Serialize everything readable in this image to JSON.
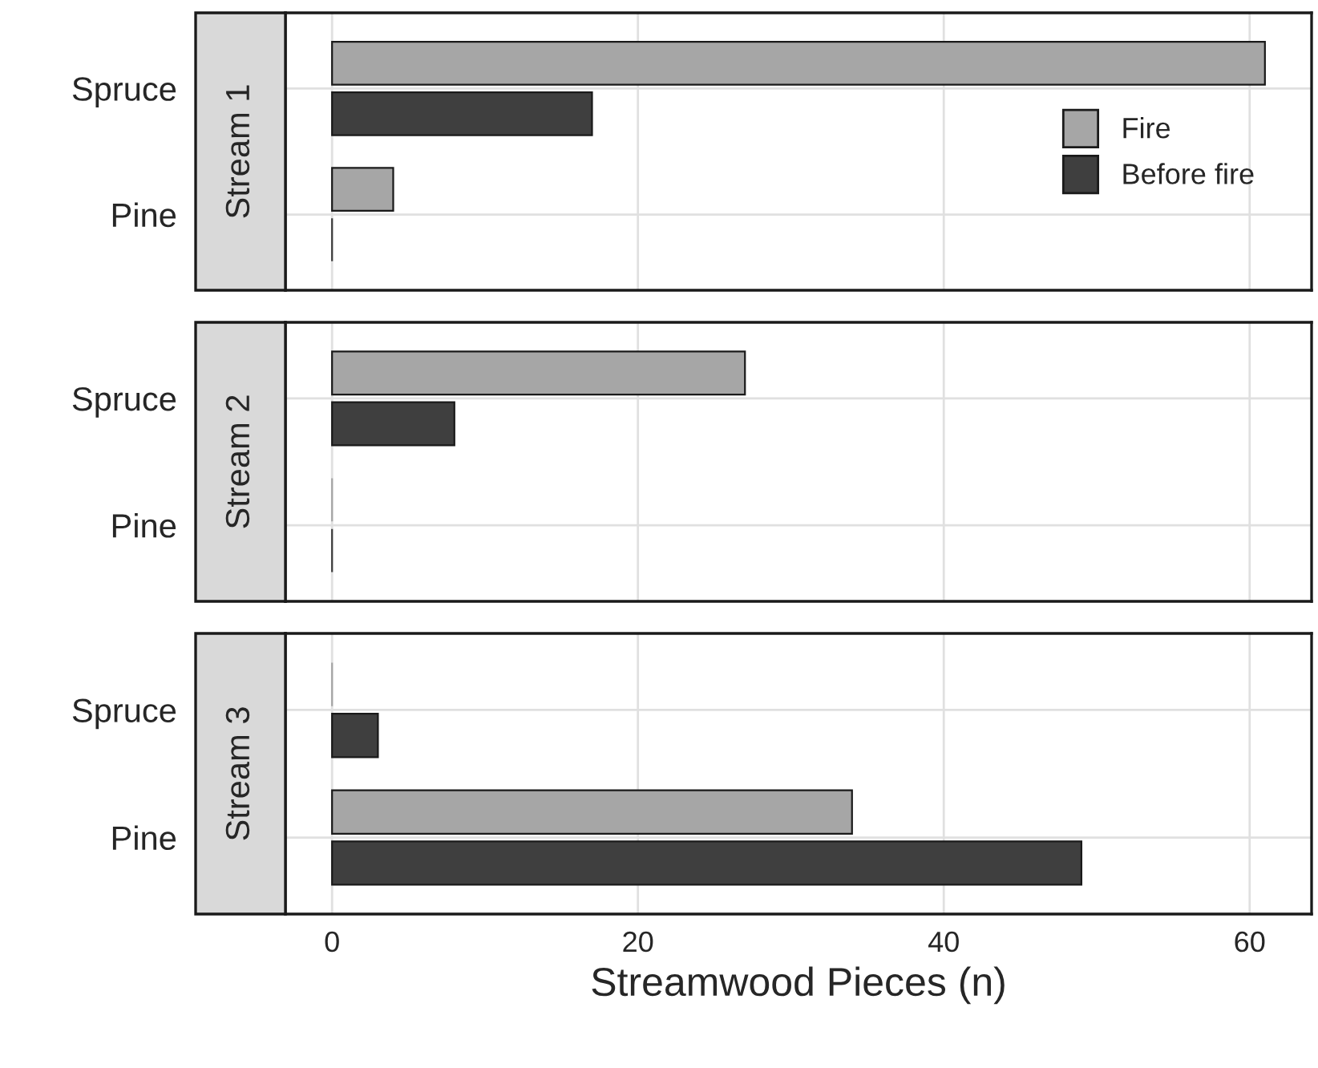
{
  "chart_data": [
    {
      "type": "bar",
      "orientation": "horizontal",
      "title": "Stream 1",
      "categories": [
        "Spruce",
        "Pine"
      ],
      "series": [
        {
          "name": "Fire",
          "color": "#a6a6a6",
          "values": [
            61,
            4
          ]
        },
        {
          "name": "Before fire",
          "color": "#3f3f3f",
          "values": [
            17,
            0
          ]
        }
      ],
      "xlim": [
        -3.05,
        64.05
      ],
      "xticks": [
        0,
        20,
        40,
        60
      ],
      "grid": true,
      "legend": "right",
      "tick_labels": "y"
    },
    {
      "type": "bar",
      "orientation": "horizontal",
      "title": "Stream 2",
      "categories": [
        "Spruce",
        "Pine"
      ],
      "series": [
        {
          "color": "#a6a6a6",
          "values": [
            27,
            0
          ]
        },
        {
          "color": "#3f3f3f",
          "values": [
            8,
            0
          ]
        }
      ],
      "xlim": [
        -3.05,
        64.05
      ],
      "xticks": [
        0,
        20,
        40,
        60
      ],
      "grid": true,
      "tick_labels": "y"
    },
    {
      "type": "bar",
      "orientation": "horizontal",
      "title": "Stream 3",
      "categories": [
        "Spruce",
        "Pine"
      ],
      "series": [
        {
          "color": "#a6a6a6",
          "values": [
            0,
            34
          ]
        },
        {
          "color": "#3f3f3f",
          "values": [
            3,
            49
          ]
        }
      ],
      "xlim": [
        -3.05,
        64.05
      ],
      "xticks": [
        0,
        20,
        40,
        60
      ],
      "grid": true,
      "xlabel": "Streamwood Pieces (n)"
    }
  ]
}
